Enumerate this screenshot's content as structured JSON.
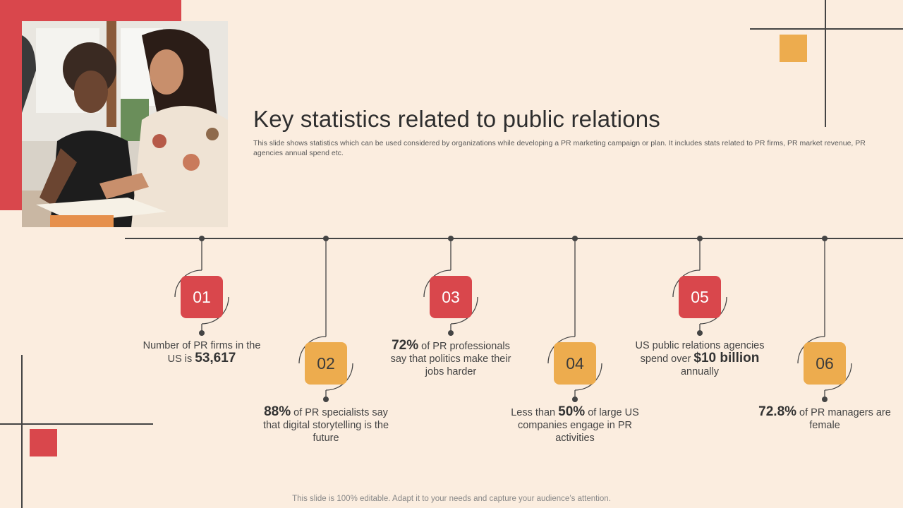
{
  "slide": {
    "title": "Key statistics related to public relations",
    "subtitle": "This slide shows statistics which can be used considered by organizations while developing a PR marketing campaign or plan. It includes stats related to PR firms, PR market revenue, PR agencies annual spend etc.",
    "footer": "This slide is 100% editable. Adapt it to your needs and capture your audience’s attention."
  },
  "colors": {
    "accent_red": "#d9474c",
    "accent_orange": "#edac4e",
    "background": "#fbeddf"
  },
  "stats": [
    {
      "number": "01",
      "pre": "Number of PR firms in the US is ",
      "value": "53,617",
      "post": "",
      "color": "red"
    },
    {
      "number": "02",
      "pre": "",
      "value": "88%",
      "post": " of PR specialists say that digital storytelling is the future",
      "color": "orange"
    },
    {
      "number": "03",
      "pre": "",
      "value": "72%",
      "post": " of PR professionals say that politics make their jobs harder",
      "color": "red"
    },
    {
      "number": "04",
      "pre": "Less than ",
      "value": "50%",
      "post": " of large US companies engage in PR activities",
      "color": "orange"
    },
    {
      "number": "05",
      "pre": "US public relations agencies spend over ",
      "value": "$10 billion",
      "post": " annually",
      "color": "red"
    },
    {
      "number": "06",
      "pre": "",
      "value": "72.8%",
      "post": " of PR managers are female",
      "color": "orange"
    }
  ]
}
